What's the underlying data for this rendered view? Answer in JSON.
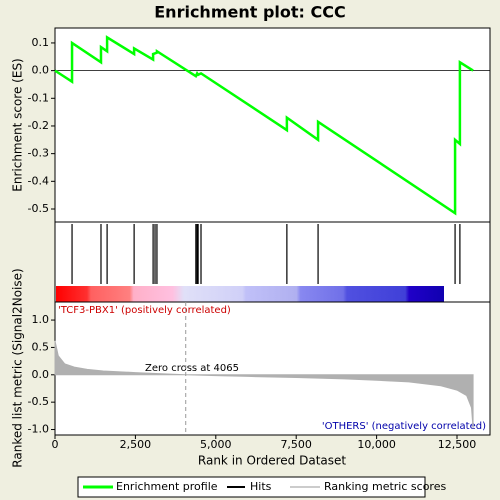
{
  "chart_data": {
    "type": "enrichment",
    "title": "Enrichment plot: CCC",
    "xlabel": "Rank in Ordered Dataset",
    "xlim": [
      0,
      13526
    ],
    "xticks": [
      0,
      {
        "value": 2500,
        "label": "2,500"
      },
      {
        "value": 5000,
        "label": "5,000"
      },
      {
        "value": 7500,
        "label": "7,500"
      },
      {
        "value": 10000,
        "label": "10,000"
      },
      {
        "value": 12500,
        "label": "12,500"
      }
    ],
    "es": {
      "ylabel": "Enrichment score (ES)",
      "color": "#00ff00",
      "ylim": [
        -0.547,
        0.154
      ],
      "yticks": [
        {
          "value": 0.1,
          "label": "0.1"
        },
        {
          "value": 0,
          "label": "0.0"
        },
        -0.1,
        -0.2,
        -0.3,
        -0.4,
        -0.5
      ],
      "x": [
        0,
        530,
        530,
        1430,
        1430,
        1620,
        1620,
        2460,
        2460,
        3050,
        3050,
        3170,
        3170,
        4380,
        4420,
        4450,
        4540,
        7210,
        7210,
        8180,
        8180,
        12440,
        12440,
        12590,
        12590,
        13000
      ],
      "values": [
        0,
        -0.04,
        0.1,
        0.03,
        0.085,
        0.07,
        0.12,
        0.06,
        0.08,
        0.04,
        0.06,
        0.065,
        0.07,
        -0.02,
        -0.01,
        -0.015,
        -0.01,
        -0.215,
        -0.17,
        -0.25,
        -0.185,
        -0.515,
        -0.25,
        -0.265,
        0.03,
        0
      ]
    },
    "hits": {
      "x": [
        530,
        1430,
        1620,
        2460,
        3050,
        3110,
        3170,
        4380,
        4420,
        4450,
        4540,
        7210,
        8180,
        12440,
        12590
      ]
    },
    "metric": {
      "ylabel": "Ranked list metric (Signal2Noise)",
      "color": "#b0b0b0",
      "ylim": [
        -1.1,
        1.33
      ],
      "yticks": [
        {
          "value": 1,
          "label": "1.0"
        },
        {
          "value": 0.5,
          "label": "0.5"
        },
        {
          "value": 0,
          "label": "0.0"
        },
        {
          "value": -0.5,
          "label": "-0.5"
        },
        {
          "value": -1,
          "label": "-1.0"
        }
      ],
      "x": [
        0,
        100,
        300,
        600,
        1000,
        1500,
        2500,
        3500,
        4065,
        5000,
        6000,
        7500,
        9000,
        10000,
        11000,
        12000,
        12500,
        12800,
        12950,
        13000
      ],
      "values": [
        0.62,
        0.35,
        0.2,
        0.14,
        0.1,
        0.07,
        0.04,
        0.015,
        0,
        -0.015,
        -0.03,
        -0.05,
        -0.075,
        -0.1,
        -0.13,
        -0.2,
        -0.28,
        -0.38,
        -0.6,
        -0.98
      ]
    },
    "zero_cross": 4065,
    "zero_cross_label": "Zero cross at 4065",
    "pos_label": "'TCF3-PBX1' (positively correlated)",
    "neg_label": "'OTHERS' (negatively correlated)",
    "legend": [
      "Enrichment profile",
      "Hits",
      "Ranking metric scores"
    ]
  }
}
